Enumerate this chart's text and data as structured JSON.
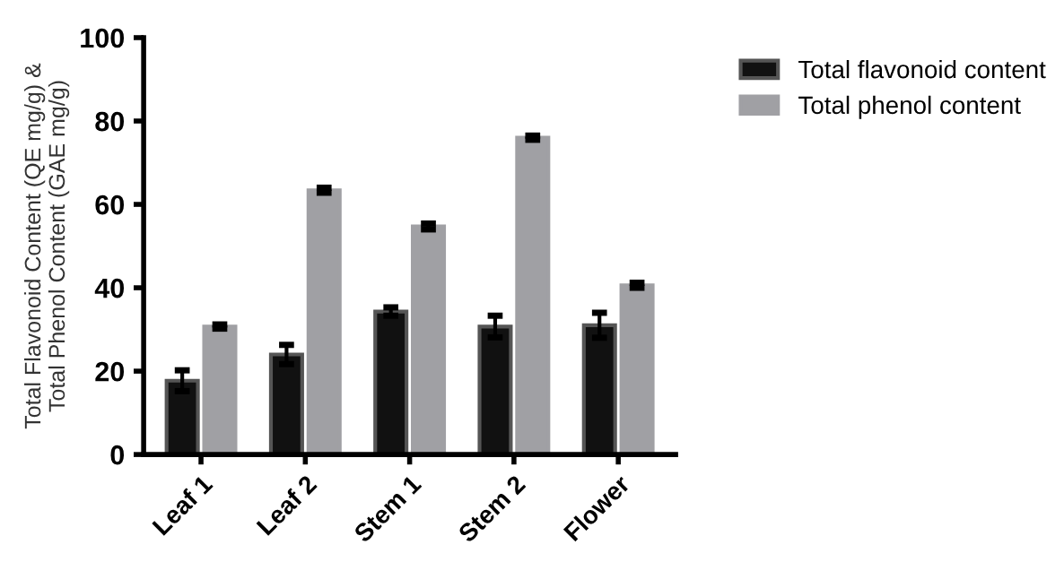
{
  "chart_data": {
    "type": "bar",
    "ylabel": "Total Flavonoid Content (QE mg/g) &\nTotal Phenol Content (GAE mg/g)",
    "categories": [
      "Leaf 1",
      "Leaf 2",
      "Stem 1",
      "Stem 2",
      "Flower"
    ],
    "series": [
      {
        "name": "Total flavonoid content",
        "color": "#111111",
        "values": [
          17.7,
          24,
          34.3,
          30.7,
          31
        ],
        "errors": [
          2.5,
          2.3,
          1,
          2.6,
          3
        ]
      },
      {
        "name": "Total phenol content",
        "color": "#a0a0a4",
        "values": [
          30.7,
          63.4,
          54.7,
          76,
          40.6
        ],
        "errors": [
          0.5,
          0.6,
          0.7,
          0.5,
          0.6
        ]
      }
    ],
    "ylim": [
      0,
      100
    ],
    "yticks": [
      0,
      20,
      40,
      60,
      80,
      100
    ],
    "grid": false,
    "legend": "top right"
  }
}
